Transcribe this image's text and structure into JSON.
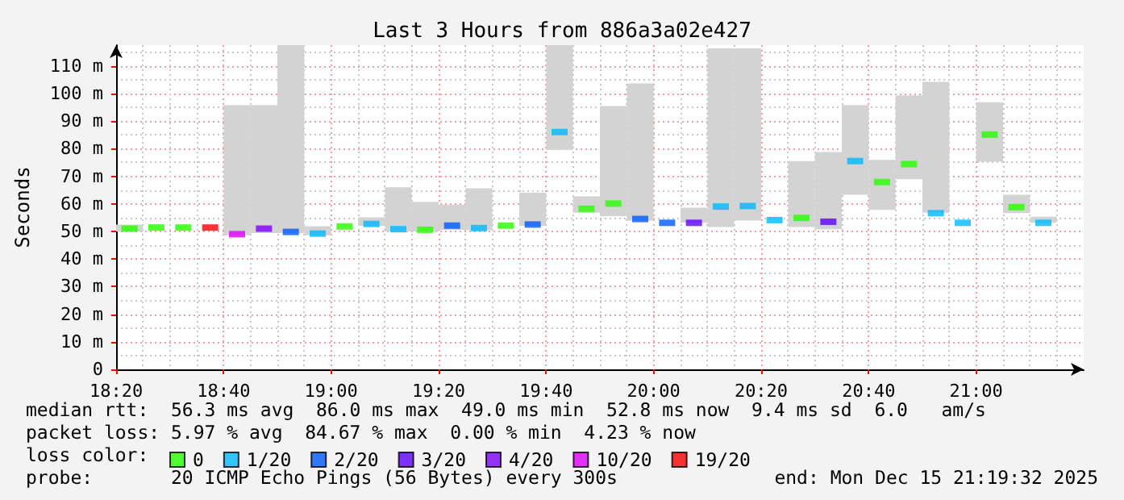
{
  "chart_data": {
    "type": "bar",
    "title": "Last 3 Hours from 886a3a02e427",
    "ylabel": "Seconds",
    "legend_title": "loss color:",
    "annotations": [
      "median rtt:  56.3 ms avg  86.0 ms max  49.0 ms min  52.8 ms now  9.4 ms sd  6.0   am/s",
      "packet loss: 5.97 % avg  84.67 % max  0.00 % min  4.23 % now",
      "probe:       20 ICMP Echo Pings (56 Bytes) every 300s",
      "end: Mon Dec 15 21:19:32 2025"
    ],
    "x": [
      "2025-12-15T18:22:30",
      "2025-12-15T18:27:30",
      "2025-12-15T18:32:30",
      "2025-12-15T18:37:30",
      "2025-12-15T18:42:30",
      "2025-12-15T18:47:30",
      "2025-12-15T18:52:30",
      "2025-12-15T18:57:30",
      "2025-12-15T19:02:30",
      "2025-12-15T19:07:30",
      "2025-12-15T19:12:30",
      "2025-12-15T19:17:30",
      "2025-12-15T19:22:30",
      "2025-12-15T19:27:30",
      "2025-12-15T19:32:30",
      "2025-12-15T19:37:30",
      "2025-12-15T19:42:30",
      "2025-12-15T19:47:30",
      "2025-12-15T19:52:30",
      "2025-12-15T19:57:30",
      "2025-12-15T20:02:30",
      "2025-12-15T20:07:30",
      "2025-12-15T20:12:30",
      "2025-12-15T20:17:30",
      "2025-12-15T20:22:30",
      "2025-12-15T20:27:30",
      "2025-12-15T20:32:30",
      "2025-12-15T20:37:30",
      "2025-12-15T20:42:30",
      "2025-12-15T20:47:30",
      "2025-12-15T20:52:30",
      "2025-12-15T20:57:30",
      "2025-12-15T21:02:30",
      "2025-12-15T21:07:30",
      "2025-12-15T21:12:30"
    ],
    "base": [
      50,
      null,
      null,
      null,
      48.6,
      49.4,
      49.4,
      48.6,
      null,
      52,
      50,
      50,
      50.6,
      50.4,
      null,
      52,
      79.6,
      56.8,
      55.5,
      53.9,
      null,
      53.1,
      51.6,
      53.9,
      null,
      51.6,
      50.8,
      63.3,
      57.8,
      68.9,
      56.8,
      null,
      75.3,
      56.6,
      53.1
    ],
    "values": [
      2.5,
      null,
      null,
      null,
      47.2,
      46.4,
      68.1,
      3.3,
      null,
      3.1,
      16,
      10.7,
      9.1,
      15.2,
      null,
      12,
      37.9,
      5.9,
      39.9,
      49.7,
      null,
      5.5,
      64.7,
      62.4,
      null,
      23.9,
      28,
      32.5,
      18.1,
      30.4,
      47.4,
      null,
      21.5,
      6.7,
      2.2
    ],
    "color": "#d3d3d3",
    "series": [
      {
        "name": "0",
        "type": "scatter",
        "color": "#26ff00",
        "x": [
          "2025-12-15T18:22:30",
          "2025-12-15T18:27:30",
          "2025-12-15T18:32:30",
          "2025-12-15T19:02:30",
          "2025-12-15T19:17:30",
          "2025-12-15T19:32:30",
          "2025-12-15T19:47:30",
          "2025-12-15T19:52:30",
          "2025-12-15T20:27:30",
          "2025-12-15T20:42:30",
          "2025-12-15T20:47:30",
          "2025-12-15T21:02:30",
          "2025-12-15T21:07:30"
        ],
        "values": [
          51,
          51.4,
          51.4,
          51.8,
          50.6,
          52.1,
          58.2,
          60.1,
          54.9,
          67.9,
          74.4,
          85.1,
          58.8
        ]
      },
      {
        "name": "1/20",
        "type": "scatter",
        "color": "#00b8ff",
        "x": [
          "2025-12-15T18:57:30",
          "2025-12-15T19:07:30",
          "2025-12-15T19:12:30",
          "2025-12-15T19:27:30",
          "2025-12-15T19:42:30",
          "2025-12-15T20:12:30",
          "2025-12-15T20:17:30",
          "2025-12-15T20:22:30",
          "2025-12-15T20:37:30",
          "2025-12-15T20:52:30",
          "2025-12-15T20:57:30",
          "2025-12-15T21:12:30"
        ],
        "values": [
          49.2,
          52.7,
          50.8,
          51.2,
          86,
          59,
          59.2,
          54.1,
          75.5,
          56.6,
          53.1,
          53.1
        ]
      },
      {
        "name": "2/20",
        "type": "scatter",
        "color": "#0059ff",
        "x": [
          "2025-12-15T18:52:30",
          "2025-12-15T19:22:30",
          "2025-12-15T19:37:30",
          "2025-12-15T19:57:30",
          "2025-12-15T20:02:30"
        ],
        "values": [
          49.8,
          52.1,
          52.5,
          54.5,
          53.1
        ]
      },
      {
        "name": "3/20",
        "type": "scatter",
        "color": "#5e00ff",
        "x": [
          "2025-12-15T20:07:30",
          "2025-12-15T20:32:30"
        ],
        "values": [
          53.1,
          53.5
        ]
      },
      {
        "name": "4/20",
        "type": "scatter",
        "color": "#7e00ff",
        "x": [
          "2025-12-15T18:47:30"
        ],
        "values": [
          51
        ]
      },
      {
        "name": "10/20",
        "type": "scatter",
        "color": "#dd00ff",
        "x": [
          "2025-12-15T18:42:30"
        ],
        "values": [
          49
        ]
      },
      {
        "name": "19/20",
        "type": "scatter",
        "color": "#ff0000",
        "x": [
          "2025-12-15T18:37:30"
        ],
        "values": [
          51.4
        ]
      }
    ],
    "xlim": [
      "2025-12-15T18:20",
      "2025-12-15T21:20"
    ],
    "xticks": [
      {
        "value": "2025-12-15T18:20",
        "label": "18:20"
      },
      {
        "value": "2025-12-15T18:40",
        "label": "18:40"
      },
      {
        "value": "2025-12-15T19:00",
        "label": "19:00"
      },
      {
        "value": "2025-12-15T19:20",
        "label": "19:20"
      },
      {
        "value": "2025-12-15T19:40",
        "label": "19:40"
      },
      {
        "value": "2025-12-15T20:00",
        "label": "20:00"
      },
      {
        "value": "2025-12-15T20:20",
        "label": "20:20"
      },
      {
        "value": "2025-12-15T20:40",
        "label": "20:40"
      },
      {
        "value": "2025-12-15T21:00",
        "label": "21:00"
      }
    ],
    "ylim": [
      0,
      117.5
    ],
    "yticks": [
      0,
      {
        "value": 10,
        "label": "10 m"
      },
      {
        "value": 20,
        "label": "20 m"
      },
      {
        "value": 30,
        "label": "30 m"
      },
      {
        "value": 40,
        "label": "40 m"
      },
      {
        "value": 50,
        "label": "50 m"
      },
      {
        "value": 60,
        "label": "60 m"
      },
      {
        "value": 70,
        "label": "70 m"
      },
      {
        "value": 80,
        "label": "80 m"
      },
      {
        "value": 90,
        "label": "90 m"
      },
      {
        "value": 100,
        "label": "100 m"
      },
      {
        "value": 110,
        "label": "110 m"
      }
    ],
    "grid": true,
    "legend": "bottom"
  }
}
